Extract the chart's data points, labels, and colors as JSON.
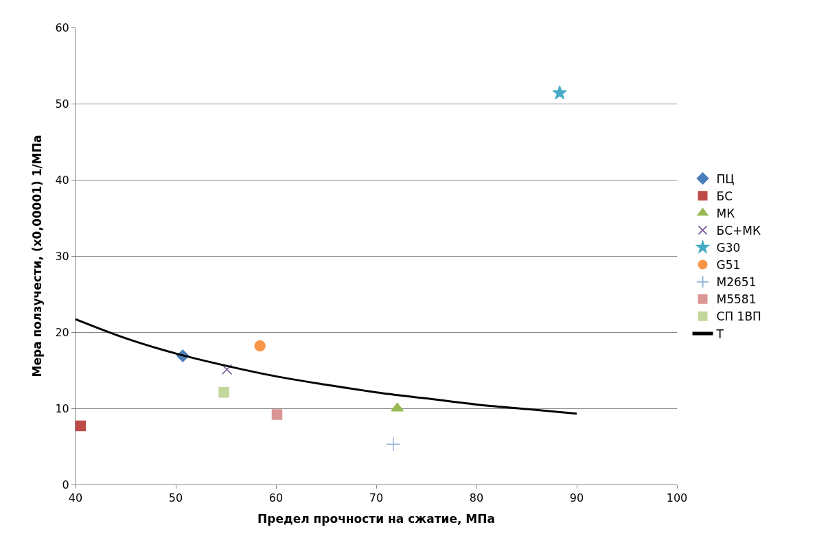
{
  "chart_data": {
    "type": "scatter",
    "xlabel": "Предел прочности на сжатие, МПа",
    "ylabel": "Мера ползучести, (x0,00001) 1/МПа",
    "xlim": [
      40,
      100
    ],
    "xticks": [
      40,
      50,
      60,
      70,
      80,
      90,
      100
    ],
    "ylim": [
      0,
      60
    ],
    "yticks": [
      0,
      10,
      20,
      30,
      40,
      50,
      60
    ],
    "grid": "y",
    "legend": "right",
    "series": [
      {
        "name": "ПЦ",
        "color": "#4a7ebb",
        "marker": "diamond",
        "x": [
          50.7
        ],
        "values": [
          16.9
        ]
      },
      {
        "name": "БС",
        "color": "#be4b48",
        "marker": "square",
        "x": [
          40.5
        ],
        "values": [
          7.7
        ]
      },
      {
        "name": "МК",
        "color": "#98b954",
        "marker": "triangle",
        "x": [
          72.1
        ],
        "values": [
          10.0
        ]
      },
      {
        "name": "БС+МК",
        "color": "#7d5fa0",
        "marker": "x",
        "x": [
          55.1
        ],
        "values": [
          15.1
        ]
      },
      {
        "name": "G30",
        "color": "#46aac5",
        "marker": "star",
        "x": [
          88.3
        ],
        "values": [
          51.4
        ]
      },
      {
        "name": "G51",
        "color": "#f79646",
        "marker": "circle",
        "x": [
          58.4
        ],
        "values": [
          18.2
        ]
      },
      {
        "name": "M2651",
        "color": "#95b3d7",
        "marker": "cross",
        "x": [
          71.7
        ],
        "values": [
          5.3
        ]
      },
      {
        "name": "M5581",
        "color": "#d99694",
        "marker": "square",
        "x": [
          60.1
        ],
        "values": [
          9.2
        ]
      },
      {
        "name": "СП 1ВП",
        "color": "#c3d69b",
        "marker": "square",
        "x": [
          54.8
        ],
        "values": [
          12.1
        ]
      },
      {
        "name": "T",
        "type": "line",
        "color": "#000000",
        "marker": "none",
        "x": [
          40,
          45,
          50,
          55,
          60,
          65,
          70,
          75,
          80,
          85,
          90
        ],
        "values": [
          21.7,
          19.2,
          17.2,
          15.6,
          14.2,
          13.1,
          12.1,
          11.3,
          10.5,
          9.9,
          9.3
        ]
      }
    ]
  }
}
